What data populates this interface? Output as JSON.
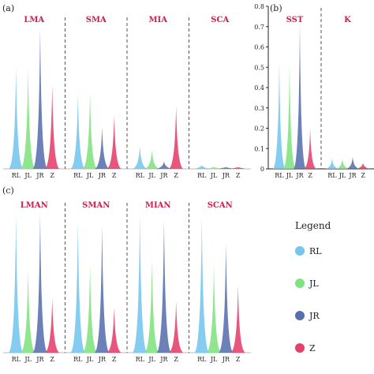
{
  "colors": {
    "RL": "#74c6ee",
    "JL": "#7fe27f",
    "JR": "#5670ad",
    "Z": "#e53f6c",
    "title": "#cc1f4e"
  },
  "chart_data": [
    {
      "panel": "(a)",
      "type": "area",
      "categories": [
        "RL",
        "JL",
        "JR",
        "Z"
      ],
      "groups": [
        {
          "title": "LMA",
          "values": [
            0.53,
            0.53,
            0.74,
            0.44
          ]
        },
        {
          "title": "SMA",
          "values": [
            0.39,
            0.4,
            0.22,
            0.28
          ]
        },
        {
          "title": "MIA",
          "values": [
            0.12,
            0.1,
            0.04,
            0.33
          ]
        },
        {
          "title": "SCA",
          "values": [
            0.02,
            0.01,
            0.01,
            0.01
          ]
        }
      ],
      "ylim": [
        0,
        0.8
      ],
      "yaxis_visible": false
    },
    {
      "panel": "(b)",
      "type": "area",
      "categories": [
        "RL",
        "JL",
        "JR",
        "Z"
      ],
      "groups": [
        {
          "title": "SST",
          "values": [
            0.53,
            0.52,
            0.72,
            0.2
          ]
        },
        {
          "title": "K",
          "values": [
            0.05,
            0.05,
            0.06,
            0.03
          ]
        }
      ],
      "ylim": [
        0,
        0.8
      ],
      "yticks": [
        "0",
        "0.1",
        "0.2",
        "0.3",
        "0.4",
        "0.5",
        "0.6",
        "0.7",
        "0.8"
      ]
    },
    {
      "panel": "(c)",
      "type": "area",
      "categories": [
        "RL",
        "JL",
        "JR",
        "Z"
      ],
      "groups": [
        {
          "title": "LMAN",
          "values": [
            0.92,
            0.55,
            0.92,
            0.36
          ]
        },
        {
          "title": "SMAN",
          "values": [
            0.88,
            0.58,
            0.84,
            0.3
          ]
        },
        {
          "title": "MIAN",
          "values": [
            0.92,
            0.62,
            0.88,
            0.34
          ]
        },
        {
          "title": "SCAN",
          "values": [
            0.9,
            0.58,
            0.72,
            0.44
          ]
        }
      ],
      "ylim": [
        0,
        1
      ],
      "yaxis_visible": false
    }
  ],
  "legend": {
    "title": "Legend",
    "items": [
      {
        "label": "RL",
        "key": "RL"
      },
      {
        "label": "JL",
        "key": "JL"
      },
      {
        "label": "JR",
        "key": "JR"
      },
      {
        "label": "Z",
        "key": "Z"
      }
    ]
  }
}
